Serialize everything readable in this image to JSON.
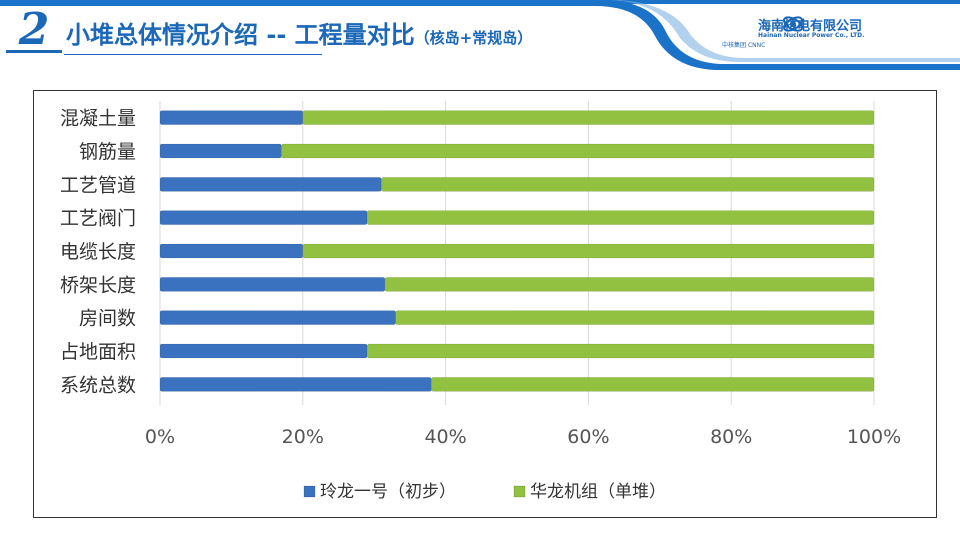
{
  "header": {
    "section_number": "2",
    "title": "小堆总体情况介绍  --  工程量对比",
    "subtitle": "（核岛+常规岛）",
    "logo_cn": "海南核电有限公司",
    "logo_en": "Hainan Nuclear Power Co., LTD.",
    "logo_group": "中核集团",
    "logo_group_en": "CNNC"
  },
  "colors": {
    "brand_blue": "#1b67b8",
    "series_1": "#3a72c0",
    "series_2": "#92c040"
  },
  "chart_data": {
    "type": "bar",
    "orientation": "horizontal",
    "stacked": "percent",
    "categories": [
      "混凝土量",
      "钢筋量",
      "工艺管道",
      "工艺阀门",
      "电缆长度",
      "桥架长度",
      "房间数",
      "占地面积",
      "系统总数"
    ],
    "series": [
      {
        "name": "玲龙一号（初步）",
        "values": [
          20,
          17,
          31,
          29,
          20,
          31.5,
          33,
          29,
          38
        ]
      },
      {
        "name": "华龙机组（单堆）",
        "values": [
          80,
          83,
          69,
          71,
          80,
          68.5,
          67,
          71,
          62
        ]
      }
    ],
    "x_ticks": [
      "0%",
      "20%",
      "40%",
      "60%",
      "80%",
      "100%"
    ],
    "xlim": [
      0,
      100
    ],
    "grid": true,
    "legend_position": "bottom"
  }
}
